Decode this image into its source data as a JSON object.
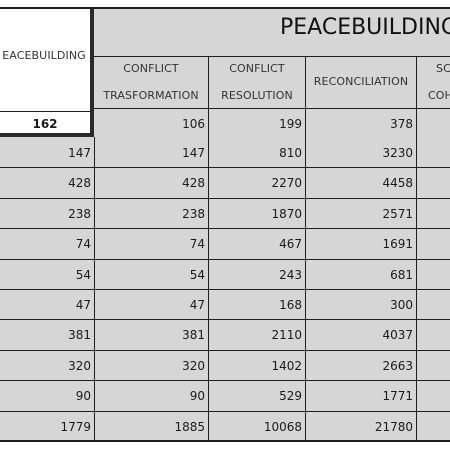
{
  "table": {
    "title": "PEACEBUILDING",
    "left_header": {
      "label": "EACEBUILDING",
      "total": "162"
    },
    "columns": [
      {
        "line1": "CONFLICT",
        "line2": "TRASFORMATION",
        "total": "106"
      },
      {
        "line1": "CONFLICT",
        "line2": "RESOLUTION",
        "total": "199"
      },
      {
        "line1": "RECONCILIATION",
        "line2": "",
        "total": "378"
      },
      {
        "line1": "SC",
        "line2": "COH",
        "total": ""
      }
    ],
    "rows": [
      {
        "left": "147",
        "values": [
          "147",
          "810",
          "3230"
        ]
      },
      {
        "left": "428",
        "values": [
          "428",
          "2270",
          "4458"
        ]
      },
      {
        "left": "238",
        "values": [
          "238",
          "1870",
          "2571"
        ]
      },
      {
        "left": "74",
        "values": [
          "74",
          "467",
          "1691"
        ]
      },
      {
        "left": "54",
        "values": [
          "54",
          "243",
          "681"
        ]
      },
      {
        "left": "47",
        "values": [
          "47",
          "168",
          "300"
        ]
      },
      {
        "left": "381",
        "values": [
          "381",
          "2110",
          "4037"
        ]
      },
      {
        "left": "320",
        "values": [
          "320",
          "1402",
          "2663"
        ]
      },
      {
        "left": "90",
        "values": [
          "90",
          "529",
          "1771"
        ]
      },
      {
        "left": "1779",
        "values": [
          "1885",
          "10068",
          "21780"
        ]
      }
    ]
  }
}
